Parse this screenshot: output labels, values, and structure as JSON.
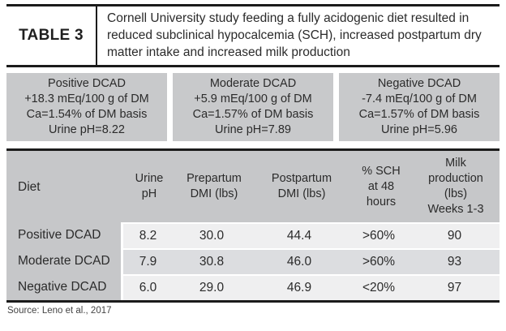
{
  "header": {
    "label": "TABLE 3",
    "title": "Cornell University study feeding a fully acidogenic diet resulted in reduced subclinical hypocalcemia (SCH), increased postpartum dry matter intake and increased milk production"
  },
  "dcad_boxes": [
    {
      "title": "Positive DCAD",
      "lines": [
        "+18.3 mEq/100 g of DM",
        "Ca=1.54% of DM basis",
        "Urine pH=8.22"
      ]
    },
    {
      "title": "Moderate DCAD",
      "lines": [
        "+5.9 mEq/100 g of DM",
        "Ca=1.57% of DM basis",
        "Urine pH=7.89"
      ]
    },
    {
      "title": "Negative DCAD",
      "lines": [
        "-7.4 mEq/100 g of DM",
        "Ca=1.57% of DM basis",
        "Urine pH=5.96"
      ]
    }
  ],
  "data_table": {
    "columns": [
      "Diet",
      "Urine\npH",
      "Prepartum\nDMI (lbs)",
      "Postpartum\nDMI (lbs)",
      "% SCH\nat 48\nhours",
      "Milk\nproduction\n(lbs)\nWeeks 1-3"
    ],
    "rows": [
      [
        "Positive DCAD",
        "8.2",
        "30.0",
        "44.4",
        ">60%",
        "90"
      ],
      [
        "Moderate DCAD",
        "7.9",
        "30.8",
        "46.0",
        ">60%",
        "93"
      ],
      [
        "Negative DCAD",
        "6.0",
        "29.0",
        "46.9",
        "<20%",
        "97"
      ]
    ]
  },
  "source": "Source: Leno et al., 2017",
  "colors": {
    "border_black": "#1b1b1b",
    "band_gray": "#c6c7c9",
    "box_gray": "#c8c9cb",
    "row_light": "#efeff0",
    "row_mid": "#dcdde0",
    "text": "#2b2b2b"
  },
  "chart_data": {
    "type": "table",
    "title": "Cornell University study feeding a fully acidogenic diet resulted in reduced subclinical hypocalcemia (SCH), increased postpartum dry matter intake and increased milk production",
    "columns": [
      "Diet",
      "Urine pH",
      "Prepartum DMI (lbs)",
      "Postpartum DMI (lbs)",
      "% SCH at 48 hours",
      "Milk production (lbs) Weeks 1-3"
    ],
    "rows": [
      [
        "Positive DCAD",
        8.2,
        30.0,
        44.4,
        ">60%",
        90
      ],
      [
        "Moderate DCAD",
        7.9,
        30.8,
        46.0,
        ">60%",
        93
      ],
      [
        "Negative DCAD",
        6.0,
        29.0,
        46.9,
        "<20%",
        97
      ]
    ],
    "groups": [
      {
        "name": "Positive DCAD",
        "dcad_mEq_per_100g_DM": 18.3,
        "ca_pct_of_DM": 1.54,
        "urine_pH": 8.22
      },
      {
        "name": "Moderate DCAD",
        "dcad_mEq_per_100g_DM": 5.9,
        "ca_pct_of_DM": 1.57,
        "urine_pH": 7.89
      },
      {
        "name": "Negative DCAD",
        "dcad_mEq_per_100g_DM": -7.4,
        "ca_pct_of_DM": 1.57,
        "urine_pH": 5.96
      }
    ],
    "source": "Leno et al., 2017"
  }
}
